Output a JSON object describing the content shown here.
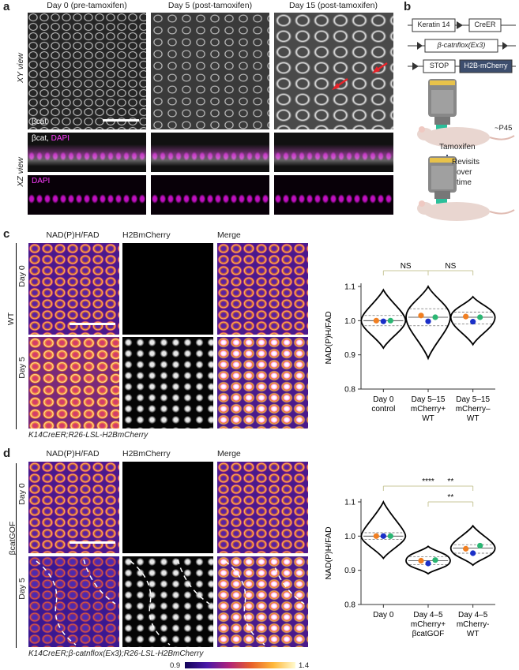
{
  "panel_a": {
    "label": "a",
    "col_titles": [
      "Day 0 (pre-tamoxifen)",
      "Day 5 (post-tamoxifen)",
      "Day 15 (post-tamoxifen)"
    ],
    "xy_label": "XY view",
    "xz_label": "XZ view",
    "bcat_tag": "βcat",
    "bcat_dapi_tag_1": "βcat,",
    "bcat_dapi_tag_2": "DAPI",
    "dapi_tag": "DAPI"
  },
  "panel_b": {
    "label": "b",
    "keratin": "Keratin 14",
    "creer": "CreER",
    "catnflox": "β-catnflox(Ex3)",
    "stop": "STOP",
    "h2b": "H2B-mCherry",
    "age": "~P45",
    "tamoxifen": "Tamoxifen",
    "revisit_1": "Revisits",
    "revisit_2": "over",
    "revisit_3": "time"
  },
  "panel_c": {
    "label": "c",
    "col_titles": [
      "NAD(P)H/FAD",
      "H2BmCherry",
      "Merge"
    ],
    "row_labels": [
      "Day 0",
      "Day 5"
    ],
    "group_label": "WT",
    "genotype": "K14CreER;R26-LSL-H2BmCherry"
  },
  "panel_d": {
    "label": "d",
    "col_titles": [
      "NAD(P)H/FAD",
      "H2BmCherry",
      "Merge"
    ],
    "row_labels": [
      "Day 0",
      "Day 5"
    ],
    "group_label": "βcatGOF",
    "genotype": "K14CreER;β-catnflox(Ex3);R26-LSL-H2BmCherry"
  },
  "colorbar": {
    "min": "0.9",
    "max": "1.4",
    "colors": [
      "#120458",
      "#4a18a8",
      "#b0237a",
      "#e8602a",
      "#ffb83a",
      "#fffbd0"
    ]
  },
  "colors": {
    "violin": "#000000",
    "dot_orange": "#f07f22",
    "dot_blue": "#1a2fc8",
    "dot_green": "#2bb673",
    "sig_line": "#c8c79a"
  },
  "chart_data": [
    {
      "type": "violin",
      "panel": "c",
      "ylabel": "NAD(P)H/FAD",
      "ylim": [
        0.8,
        1.1
      ],
      "yticks": [
        "0.8",
        "0.9",
        "1.0",
        "1.1"
      ],
      "categories": [
        [
          "Day 0",
          "control"
        ],
        [
          "Day 5–15",
          "mCherry+",
          "WT"
        ],
        [
          "Day 5–15",
          "mCherry–",
          "WT"
        ]
      ],
      "distributions": [
        {
          "min": 0.92,
          "max": 1.09,
          "median": 1.0,
          "q1": 0.985,
          "q3": 1.015,
          "dots": [
            1.0,
            0.998,
            1.0
          ]
        },
        {
          "min": 0.89,
          "max": 1.1,
          "median": 1.01,
          "q1": 0.985,
          "q3": 1.035,
          "dots": [
            1.015,
            0.998,
            1.01
          ]
        },
        {
          "min": 0.93,
          "max": 1.07,
          "median": 1.01,
          "q1": 0.99,
          "q3": 1.025,
          "dots": [
            1.012,
            0.997,
            1.01
          ]
        }
      ],
      "comparisons": [
        {
          "from": 0,
          "to": 1,
          "label": "NS"
        },
        {
          "from": 1,
          "to": 2,
          "label": "NS"
        }
      ]
    },
    {
      "type": "violin",
      "panel": "d",
      "ylabel": "NAD(P)H/FAD",
      "ylim": [
        0.8,
        1.1
      ],
      "yticks": [
        "0.8",
        "0.9",
        "1.0",
        "1.1"
      ],
      "categories": [
        [
          "Day 0"
        ],
        [
          "Day 4–5",
          "mCherry+",
          "βcatGOF"
        ],
        [
          "Day 4–5",
          "mCherry-",
          "WT"
        ]
      ],
      "distributions": [
        {
          "min": 0.935,
          "max": 1.1,
          "median": 1.0,
          "q1": 0.99,
          "q3": 1.01,
          "dots": [
            1.0,
            1.0,
            1.0
          ]
        },
        {
          "min": 0.89,
          "max": 0.97,
          "median": 0.928,
          "q1": 0.917,
          "q3": 0.94,
          "dots": [
            0.928,
            0.92,
            0.93
          ]
        },
        {
          "min": 0.915,
          "max": 1.03,
          "median": 0.965,
          "q1": 0.95,
          "q3": 0.975,
          "dots": [
            0.963,
            0.95,
            0.972
          ]
        }
      ],
      "comparisons": [
        {
          "from": 0,
          "to": 2,
          "label": "****",
          "level": 0
        },
        {
          "from": 1,
          "to": 2,
          "label": "**",
          "level": 0,
          "label_only": true
        },
        {
          "from": 1,
          "to": 2,
          "label": "**",
          "level": 1
        }
      ]
    }
  ]
}
